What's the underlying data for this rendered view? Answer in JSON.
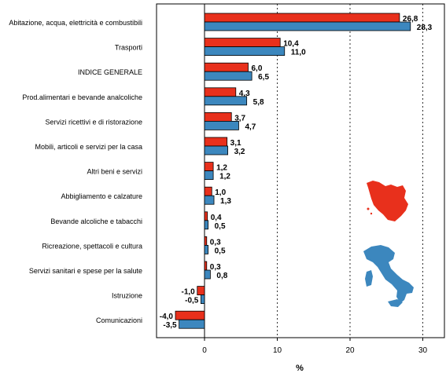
{
  "chart_data": {
    "type": "bar",
    "orientation": "horizontal",
    "categories": [
      "Abitazione, acqua, elettricità e combustibili",
      "Trasporti",
      "INDICE GENERALE",
      "Prod.alimentari e bevande analcoliche",
      "Servizi ricettivi e di ristorazione",
      "Mobili, articoli e servizi per la casa",
      "Altri beni e servizi",
      "Abbigliamento e calzature",
      "Bevande alcoliche e tabacchi",
      "Ricreazione, spettacoli e cultura",
      "Servizi sanitari e spese per la salute",
      "Istruzione",
      "Comunicazioni"
    ],
    "series": [
      {
        "region": "Toscana",
        "color": "#e8301c",
        "values": [
          26.8,
          10.4,
          6.0,
          4.3,
          3.7,
          3.1,
          1.2,
          1.0,
          0.4,
          0.3,
          0.3,
          -1.0,
          -4.0
        ],
        "labels": [
          "26,8",
          "10,4",
          "6,0",
          "4,3",
          "3,7",
          "3,1",
          "1,2",
          "1,0",
          "0,4",
          "0,3",
          "0,3",
          "-1,0",
          "-4,0"
        ]
      },
      {
        "region": "Italia",
        "color": "#3c87be",
        "values": [
          28.3,
          11.0,
          6.5,
          5.8,
          4.7,
          3.2,
          1.2,
          1.3,
          0.5,
          0.5,
          0.8,
          -0.5,
          -3.5
        ],
        "labels": [
          "28,3",
          "11,0",
          "6,5",
          "5,8",
          "4,7",
          "3,2",
          "1,2",
          "1,3",
          "0,5",
          "0,5",
          "0,8",
          "-0,5",
          "-3,5"
        ]
      }
    ],
    "xlim": [
      -7,
      32
    ],
    "xticks": [
      0,
      10,
      20,
      30
    ],
    "xtick_labels": [
      "0",
      "10",
      "20",
      "30"
    ],
    "xlabel": "%",
    "grid": "vertical dashed at 10, 20, 30",
    "legend": "map icons: Tuscany (red) and Italy (blue)"
  },
  "icons": {
    "toscana": "tuscany-map-icon",
    "italia": "italy-map-icon"
  }
}
